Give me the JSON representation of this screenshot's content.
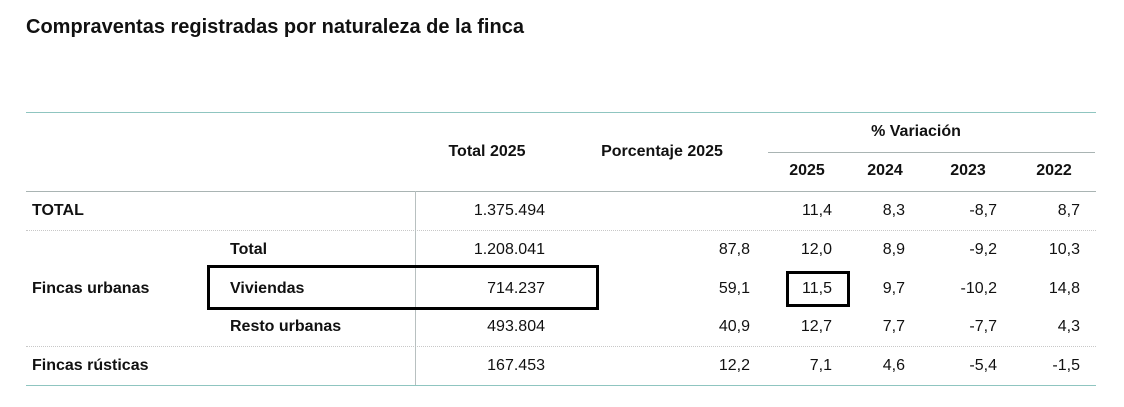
{
  "title": "Compraventas registradas por naturaleza de la finca",
  "header": {
    "total": "Total 2025",
    "porcentaje": "Porcentaje 2025",
    "variacion": "% Variación",
    "years": [
      "2025",
      "2024",
      "2023",
      "2022"
    ]
  },
  "rows": [
    {
      "group": "TOTAL",
      "sub": "",
      "total": "1.375.494",
      "pct": "",
      "v2025": "11,4",
      "v2024": "8,3",
      "v2023": "-8,7",
      "v2022": "8,7"
    },
    {
      "group": "",
      "sub": "Total",
      "total": "1.208.041",
      "pct": "87,8",
      "v2025": "12,0",
      "v2024": "8,9",
      "v2023": "-9,2",
      "v2022": "10,3"
    },
    {
      "group": "Fincas urbanas",
      "sub": "Viviendas",
      "total": "714.237",
      "pct": "59,1",
      "v2025": "11,5",
      "v2024": "9,7",
      "v2023": "-10,2",
      "v2022": "14,8"
    },
    {
      "group": "",
      "sub": "Resto urbanas",
      "total": "493.804",
      "pct": "40,9",
      "v2025": "12,7",
      "v2024": "7,7",
      "v2023": "-7,7",
      "v2022": "4,3"
    },
    {
      "group": "Fincas rústicas",
      "sub": "",
      "total": "167.453",
      "pct": "12,2",
      "v2025": "7,1",
      "v2024": "4,6",
      "v2023": "-5,4",
      "v2022": "-1,5"
    }
  ],
  "highlight_color": "#000000",
  "rule_color": "#8fc5c0"
}
